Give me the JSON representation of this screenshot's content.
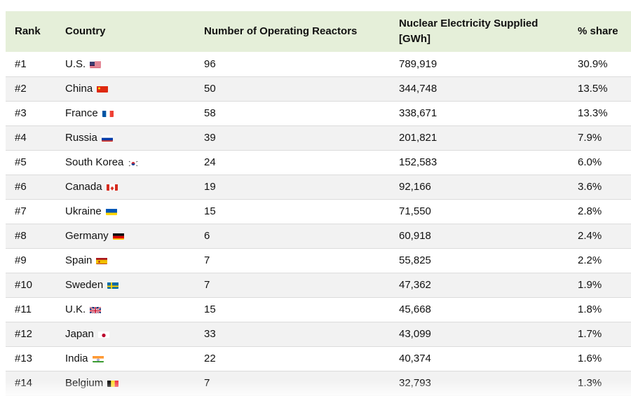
{
  "chart_data": {
    "type": "table",
    "columns": [
      "Rank",
      "Country",
      "Number of Operating Reactors",
      "Nuclear Electricity Supplied [GWh]",
      "% share"
    ],
    "rows": [
      {
        "rank": "#1",
        "country": "U.S.",
        "flag": "flag-us-icon",
        "reactors": "96",
        "gwh": "789,919",
        "share": "30.9%"
      },
      {
        "rank": "#2",
        "country": "China",
        "flag": "flag-cn-icon",
        "reactors": "50",
        "gwh": "344,748",
        "share": "13.5%"
      },
      {
        "rank": "#3",
        "country": "France",
        "flag": "flag-fr-icon",
        "reactors": "58",
        "gwh": "338,671",
        "share": "13.3%"
      },
      {
        "rank": "#4",
        "country": "Russia",
        "flag": "flag-ru-icon",
        "reactors": "39",
        "gwh": "201,821",
        "share": "7.9%"
      },
      {
        "rank": "#5",
        "country": "South Korea",
        "flag": "flag-kr-icon",
        "reactors": "24",
        "gwh": "152,583",
        "share": "6.0%"
      },
      {
        "rank": "#6",
        "country": "Canada",
        "flag": "flag-ca-icon",
        "reactors": "19",
        "gwh": "92,166",
        "share": "3.6%"
      },
      {
        "rank": "#7",
        "country": "Ukraine",
        "flag": "flag-ua-icon",
        "reactors": "15",
        "gwh": "71,550",
        "share": "2.8%"
      },
      {
        "rank": "#8",
        "country": "Germany",
        "flag": "flag-de-icon",
        "reactors": "6",
        "gwh": "60,918",
        "share": "2.4%"
      },
      {
        "rank": "#9",
        "country": "Spain",
        "flag": "flag-es-icon",
        "reactors": "7",
        "gwh": "55,825",
        "share": "2.2%"
      },
      {
        "rank": "#10",
        "country": "Sweden",
        "flag": "flag-se-icon",
        "reactors": "7",
        "gwh": "47,362",
        "share": "1.9%"
      },
      {
        "rank": "#11",
        "country": "U.K.",
        "flag": "flag-gb-icon",
        "reactors": "15",
        "gwh": "45,668",
        "share": "1.8%"
      },
      {
        "rank": "#12",
        "country": "Japan",
        "flag": "flag-jp-icon",
        "reactors": "33",
        "gwh": "43,099",
        "share": "1.7%"
      },
      {
        "rank": "#13",
        "country": "India",
        "flag": "flag-in-icon",
        "reactors": "22",
        "gwh": "40,374",
        "share": "1.6%"
      },
      {
        "rank": "#14",
        "country": "Belgium",
        "flag": "flag-be-icon",
        "reactors": "7",
        "gwh": "32,793",
        "share": "1.3%"
      }
    ]
  },
  "colors": {
    "header_bg": "#e5efd9",
    "stripe_bg": "#f2f2f2",
    "row_border": "#dcdcdc"
  }
}
